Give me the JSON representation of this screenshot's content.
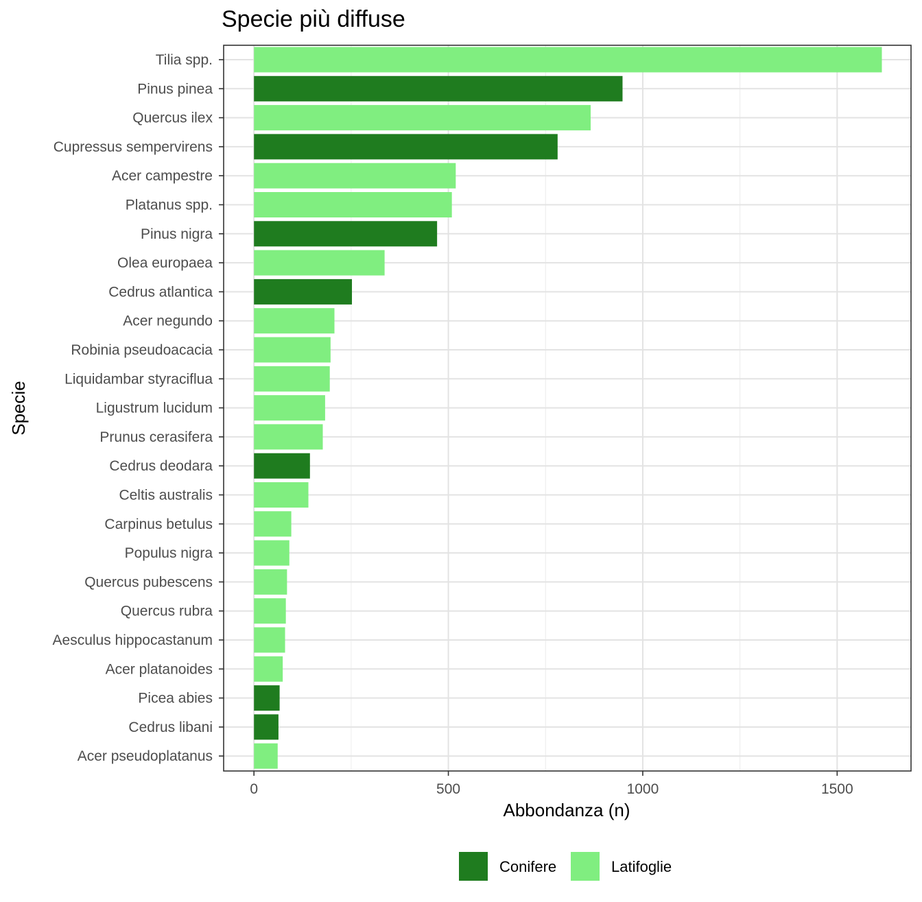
{
  "chart_data": {
    "type": "bar",
    "orientation": "horizontal",
    "title": "Specie più diffuse",
    "xlabel": "Abbondanza (n)",
    "ylabel": "Specie",
    "xlim": [
      -78,
      1690
    ],
    "xticks": [
      0,
      500,
      1000,
      1500
    ],
    "grid": true,
    "legend_position": "bottom",
    "colors": {
      "Conifere": "#1f7c1f",
      "Latifoglie": "#80ee80"
    },
    "legend": [
      "Conifere",
      "Latifoglie"
    ],
    "categories": [
      "Tilia spp.",
      "Pinus pinea",
      "Quercus ilex",
      "Cupressus sempervirens",
      "Acer campestre",
      "Platanus spp.",
      "Pinus nigra",
      "Olea europaea",
      "Cedrus atlantica",
      "Acer negundo",
      "Robinia pseudoacacia",
      "Liquidambar styraciflua",
      "Ligustrum lucidum",
      "Prunus cerasifera",
      "Cedrus deodara",
      "Celtis australis",
      "Carpinus betulus",
      "Populus nigra",
      "Quercus pubescens",
      "Quercus rubra",
      "Aesculus hippocastanum",
      "Acer platanoides",
      "Picea abies",
      "Cedrus libani",
      "Acer pseudoplatanus"
    ],
    "values": [
      1615,
      948,
      866,
      781,
      519,
      509,
      471,
      336,
      252,
      207,
      197,
      195,
      183,
      177,
      144,
      140,
      96,
      91,
      85,
      82,
      80,
      74,
      66,
      63,
      61
    ],
    "groups": [
      "Latifoglie",
      "Conifere",
      "Latifoglie",
      "Conifere",
      "Latifoglie",
      "Latifoglie",
      "Conifere",
      "Latifoglie",
      "Conifere",
      "Latifoglie",
      "Latifoglie",
      "Latifoglie",
      "Latifoglie",
      "Latifoglie",
      "Conifere",
      "Latifoglie",
      "Latifoglie",
      "Latifoglie",
      "Latifoglie",
      "Latifoglie",
      "Latifoglie",
      "Latifoglie",
      "Conifere",
      "Conifere",
      "Latifoglie"
    ]
  }
}
